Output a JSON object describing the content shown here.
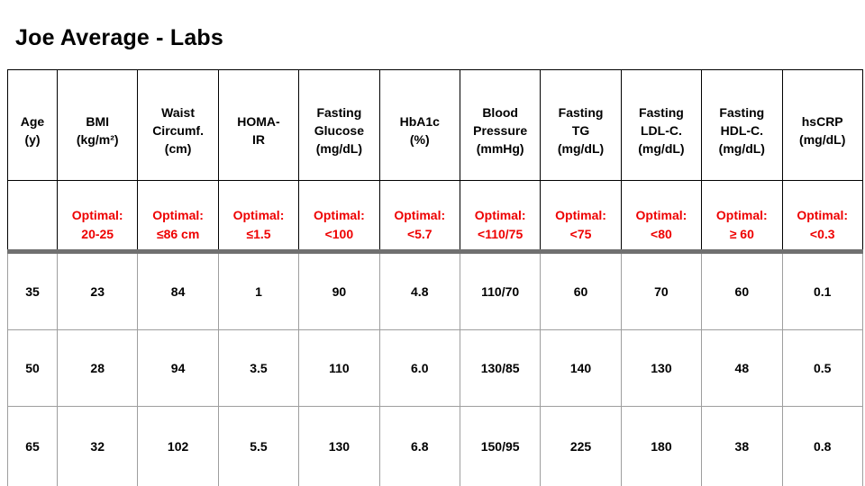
{
  "title": "Joe Average - Labs",
  "colors": {
    "optimal_red": "#ee0000",
    "divider_gray": "#707070",
    "header_border": "#000000",
    "grid_border": "#9e9e9e"
  },
  "chart_data": {
    "type": "table",
    "title": "Joe Average - Labs",
    "columns": [
      "Age (y)",
      "BMI (kg/m²)",
      "Waist Circumf. (cm)",
      "HOMA-IR",
      "Fasting Glucose (mg/dL)",
      "HbA1c (%)",
      "Blood Pressure (mmHg)",
      "Fasting TG (mg/dL)",
      "Fasting LDL-C. (mg/dL)",
      "Fasting HDL-C. (mg/dL)",
      "hsCRP (mg/dL)"
    ],
    "optimal": [
      "",
      "20-25",
      "≤86 cm",
      "≤1.5",
      "<100",
      "<5.7",
      "<110/75",
      "<75",
      "<80",
      "≥ 60",
      "<0.3"
    ],
    "rows": [
      [
        35,
        23,
        84,
        1,
        90,
        4.8,
        "110/70",
        60,
        70,
        60,
        0.1
      ],
      [
        50,
        28,
        94,
        3.5,
        110,
        6.0,
        "130/85",
        140,
        130,
        48,
        0.5
      ],
      [
        65,
        32,
        102,
        5.5,
        130,
        6.8,
        "150/95",
        225,
        180,
        38,
        0.8
      ]
    ]
  },
  "table": {
    "headers": [
      "Age\n(y)",
      "BMI\n(kg/m²)",
      "Waist\nCircumf.\n(cm)",
      "HOMA-\nIR",
      "Fasting\nGlucose\n(mg/dL)",
      "HbA1c\n(%)",
      "Blood\nPressure\n(mmHg)",
      "Fasting\nTG\n(mg/dL)",
      "Fasting\nLDL-C.\n(mg/dL)",
      "Fasting\nHDL-C.\n(mg/dL)",
      "hsCRP\n(mg/dL)"
    ],
    "optimal": [
      "",
      "Optimal:\n20-25",
      "Optimal:\n≤86 cm",
      "Optimal:\n≤1.5",
      "Optimal:\n<100",
      "Optimal:\n<5.7",
      "Optimal:\n<110/75",
      "Optimal:\n<75",
      "Optimal:\n<80",
      "Optimal:\n≥ 60",
      "Optimal:\n<0.3"
    ],
    "rows": [
      [
        "35",
        "23",
        "84",
        "1",
        "90",
        "4.8",
        "110/70",
        "60",
        "70",
        "60",
        "0.1"
      ],
      [
        "50",
        "28",
        "94",
        "3.5",
        "110",
        "6.0",
        "130/85",
        "140",
        "130",
        "48",
        "0.5"
      ],
      [
        "65",
        "32",
        "102",
        "5.5",
        "130",
        "6.8",
        "150/95",
        "225",
        "180",
        "38",
        "0.8"
      ]
    ]
  }
}
